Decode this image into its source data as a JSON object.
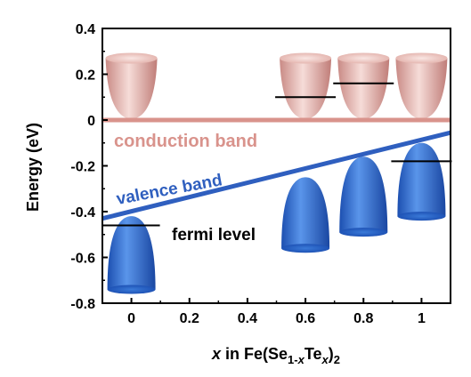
{
  "chart_data": {
    "type": "line",
    "xlabel": {
      "x": "x",
      "in": " in Fe(Se",
      "sub1": "1-",
      "subx": "x",
      "te": "Te",
      "subx2": "x",
      "close": ")",
      "sub2": "2"
    },
    "ylabel": "Energy (eV)",
    "xlim": [
      -0.1,
      1.1
    ],
    "ylim": [
      -0.8,
      0.4
    ],
    "x_ticks": [
      "0",
      "0.2",
      "0.4",
      "0.6",
      "0.8",
      "1"
    ],
    "x_tick_values": [
      0,
      0.2,
      0.4,
      0.6,
      0.8,
      1.0
    ],
    "y_ticks": [
      "0.4",
      "0.2",
      "0",
      "-0.2",
      "-0.4",
      "-0.6",
      "-0.8"
    ],
    "y_tick_values": [
      0.4,
      0.2,
      0,
      -0.2,
      -0.4,
      -0.6,
      -0.8
    ],
    "lines": {
      "conduction_band": {
        "label": "conduction band",
        "x": [
          -0.1,
          1.1
        ],
        "y": [
          0,
          0
        ],
        "color": "#d9938c"
      },
      "valence_band": {
        "label": "valence band",
        "x": [
          -0.1,
          1.1
        ],
        "y": [
          -0.43,
          -0.055
        ],
        "color": "#2f5fbf"
      }
    },
    "fermi_level": {
      "label": "fermi level",
      "x": [
        0,
        0.6,
        0.8,
        1.0
      ],
      "y": [
        -0.46,
        0.1,
        0.16,
        -0.18
      ]
    },
    "conduction_valleys_x": [
      0,
      0.6,
      0.8,
      1.0
    ],
    "valence_domes": [
      {
        "x": 0,
        "top": -0.42,
        "bottom": -0.74
      },
      {
        "x": 0.6,
        "top": -0.25,
        "bottom": -0.56
      },
      {
        "x": 0.8,
        "top": -0.16,
        "bottom": -0.49
      },
      {
        "x": 1.0,
        "top": -0.1,
        "bottom": -0.42
      }
    ],
    "colors": {
      "cone": "#e8b4ae",
      "dome": "#2f6fd0",
      "axis": "#000000"
    }
  }
}
